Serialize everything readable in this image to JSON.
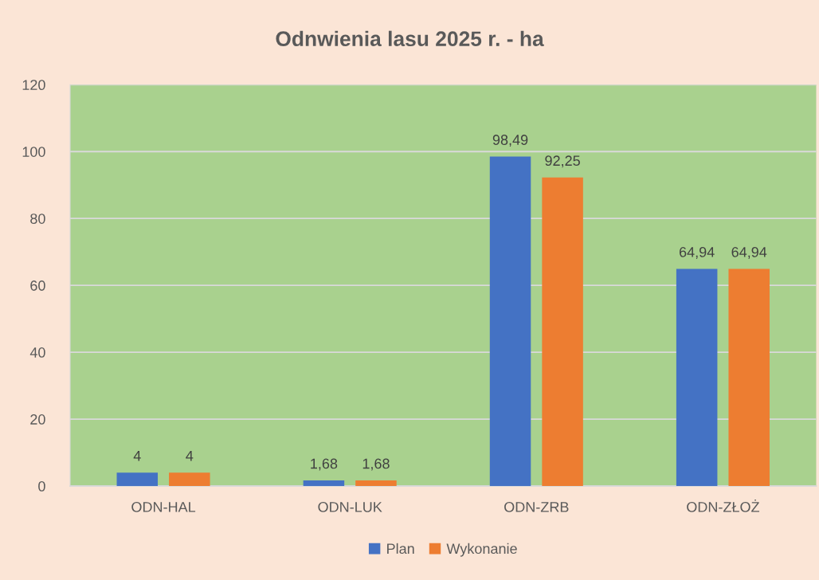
{
  "chart_data": {
    "type": "bar",
    "title": "Odnwienia lasu 2025 r. - ha",
    "categories": [
      "ODN-HAL",
      "ODN-LUK",
      "ODN-ZRB",
      "ODN-ZŁOŻ"
    ],
    "series": [
      {
        "name": "Plan",
        "color": "#4472c4",
        "values": [
          4,
          1.68,
          98.49,
          64.94
        ],
        "value_labels": [
          "4",
          "1,68",
          "98,49",
          "64,94"
        ]
      },
      {
        "name": "Wykonanie",
        "color": "#ed7d31",
        "values": [
          4,
          1.68,
          92.25,
          64.94
        ],
        "value_labels": [
          "4",
          "1,68",
          "92,25",
          "64,94"
        ]
      }
    ],
    "ylim": [
      0,
      120
    ],
    "yticks": [
      0,
      20,
      40,
      60,
      80,
      100,
      120
    ],
    "grid": "y",
    "legend": "bottom"
  }
}
